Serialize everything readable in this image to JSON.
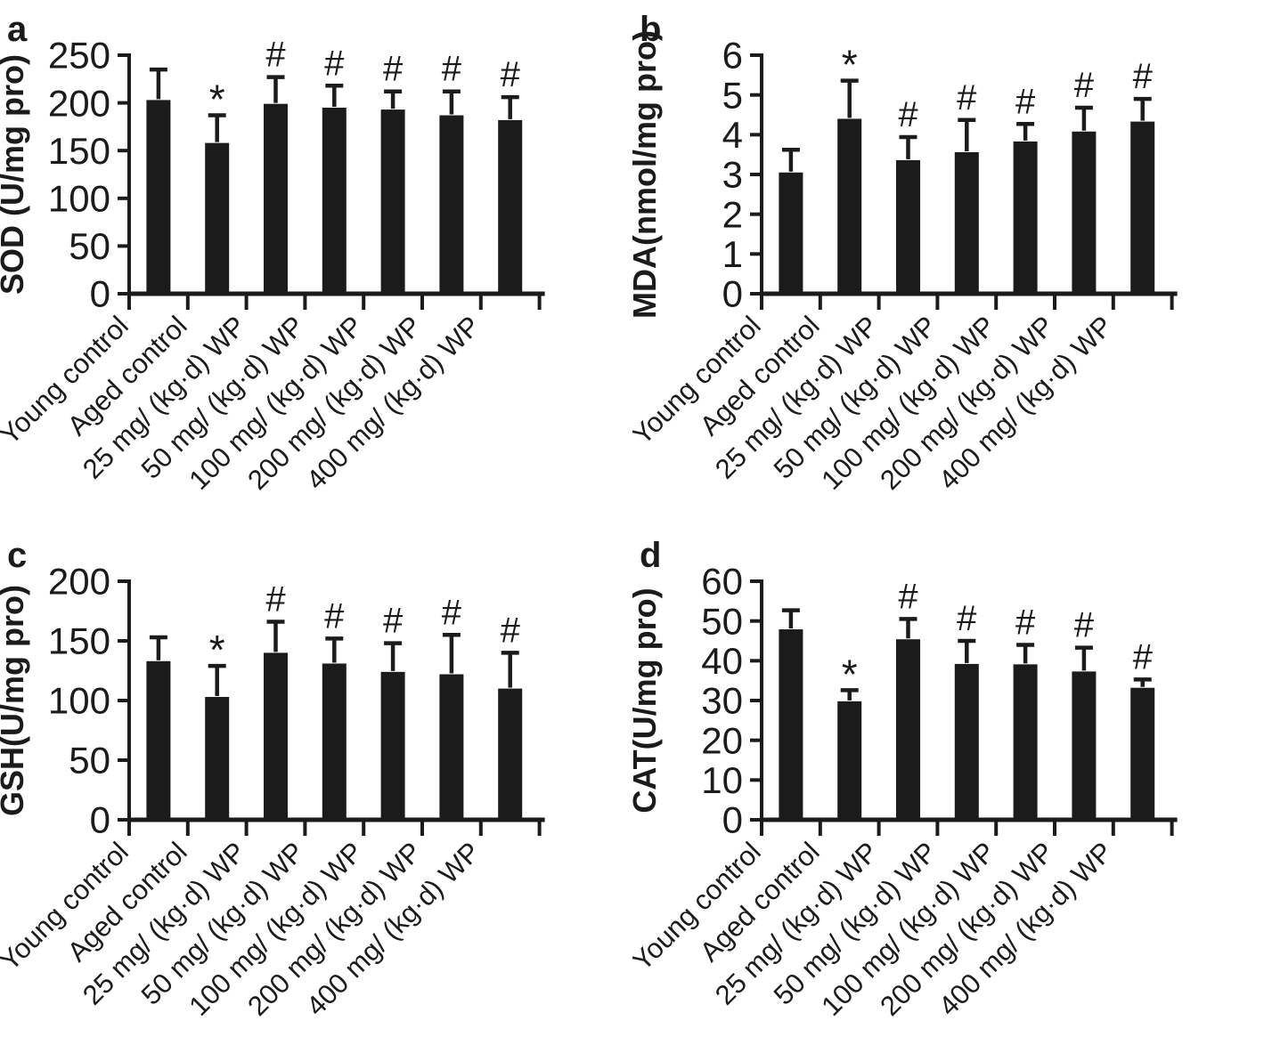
{
  "figure": {
    "background": "#ffffff",
    "bar_color": "#1b1b1b",
    "axis_color": "#1b1b1b",
    "significance_note_symbols": [
      "*",
      "#"
    ]
  },
  "chart_data": [
    {
      "type": "bar",
      "panel": "a",
      "title": "",
      "ylabel": "SOD (U/mg pro)",
      "xlabel": "",
      "ylim": [
        0,
        250
      ],
      "ytick_step": 50,
      "grid": false,
      "legend": null,
      "categories": [
        "Young control",
        "Aged control",
        "25 mg/ (kg·d) WP",
        "50 mg/ (kg·d) WP",
        "100 mg/ (kg·d) WP",
        "200 mg/ (kg·d) WP",
        "400 mg/ (kg·d) WP"
      ],
      "values": [
        203,
        158,
        199,
        195,
        193,
        187,
        182
      ],
      "error_top": [
        235,
        187,
        227,
        218,
        212,
        212,
        206
      ],
      "sig_markers": [
        "",
        "*",
        "#",
        "#",
        "#",
        "#",
        "#"
      ]
    },
    {
      "type": "bar",
      "panel": "b",
      "title": "",
      "ylabel": "MDA(nmol/mg pro)",
      "xlabel": "",
      "ylim": [
        0,
        6
      ],
      "ytick_step": 1,
      "grid": false,
      "legend": null,
      "categories": [
        "Young control",
        "Aged control",
        "25 mg/ (kg·d) WP",
        "50 mg/ (kg·d) WP",
        "100 mg/ (kg·d) WP",
        "200 mg/ (kg·d) WP",
        "400 mg/ (kg·d) WP"
      ],
      "values": [
        3.05,
        4.4,
        3.36,
        3.56,
        3.83,
        4.08,
        4.33
      ],
      "error_top": [
        3.62,
        5.36,
        3.94,
        4.37,
        4.27,
        4.68,
        4.9
      ],
      "sig_markers": [
        "",
        "*",
        "#",
        "#",
        "#",
        "#",
        "#"
      ]
    },
    {
      "type": "bar",
      "panel": "c",
      "title": "",
      "ylabel": "GSH(U/mg pro)",
      "xlabel": "",
      "ylim": [
        0,
        200
      ],
      "ytick_step": 50,
      "grid": false,
      "legend": null,
      "categories": [
        "Young control",
        "Aged control",
        "25 mg/ (kg·d) WP",
        "50 mg/ (kg·d) WP",
        "100 mg/ (kg·d) WP",
        "200 mg/ (kg·d) WP",
        "400 mg/ (kg·d) WP"
      ],
      "values": [
        133,
        103,
        140,
        131,
        124,
        122,
        110
      ],
      "error_top": [
        153,
        129,
        166,
        152,
        148,
        155,
        140
      ],
      "sig_markers": [
        "",
        "*",
        "#",
        "#",
        "#",
        "#",
        "#"
      ]
    },
    {
      "type": "bar",
      "panel": "d",
      "title": "",
      "ylabel": "CAT(U/mg pro)",
      "xlabel": "",
      "ylim": [
        0,
        60
      ],
      "ytick_step": 10,
      "grid": false,
      "legend": null,
      "categories": [
        "Young control",
        "Aged control",
        "25 mg/ (kg·d) WP",
        "50 mg/ (kg·d) WP",
        "100 mg/ (kg·d) WP",
        "200 mg/ (kg·d) WP",
        "400 mg/ (kg·d) WP"
      ],
      "values": [
        47.9,
        29.8,
        45.4,
        39.2,
        39.1,
        37.3,
        33.2
      ],
      "error_top": [
        52.7,
        32.6,
        50.5,
        45.0,
        44.0,
        43.3,
        35.3
      ],
      "sig_markers": [
        "",
        "*",
        "#",
        "#",
        "#",
        "#",
        "#"
      ]
    }
  ]
}
